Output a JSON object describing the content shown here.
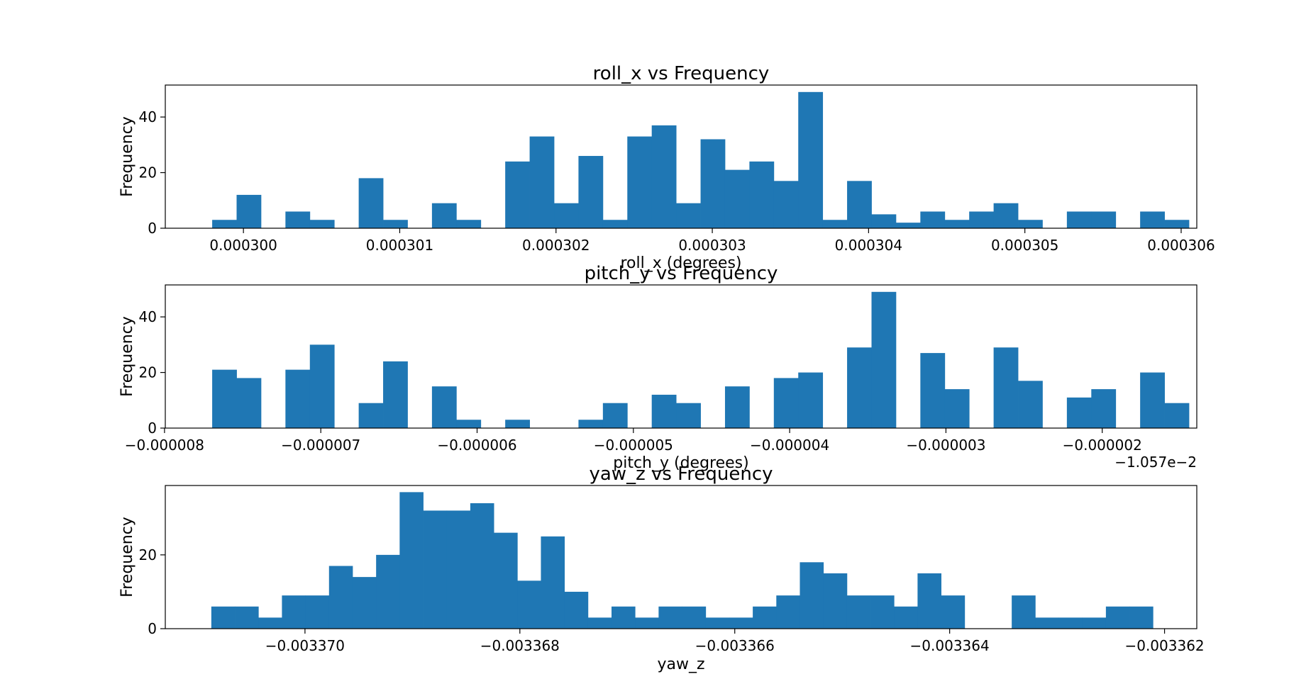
{
  "chart_data": [
    {
      "type": "bar",
      "title": "roll_x vs Frequency",
      "xlabel": "roll_x (degrees)",
      "ylabel": "Frequency",
      "offset_text": "",
      "color": "#1f77b4",
      "xlim": [
        0.0002995,
        0.0003061
      ],
      "ylim": [
        0,
        51.5
      ],
      "xticks": [
        0.0003,
        0.000301,
        0.000302,
        0.000303,
        0.000304,
        0.000305,
        0.000306
      ],
      "xtick_labels": [
        "0.000300",
        "0.000301",
        "0.000302",
        "0.000303",
        "0.000304",
        "0.000305",
        "0.000306"
      ],
      "yticks": [
        0,
        20,
        40
      ],
      "ytick_labels": [
        "0",
        "20",
        "40"
      ],
      "bin_start": 0.0002998,
      "bin_width": 1.5625e-07,
      "values": [
        3,
        12,
        0,
        6,
        3,
        0,
        18,
        3,
        0,
        9,
        3,
        0,
        24,
        33,
        9,
        26,
        3,
        33,
        37,
        9,
        32,
        21,
        24,
        17,
        49,
        3,
        17,
        5,
        2,
        6,
        3,
        6,
        9,
        3,
        0,
        6,
        6,
        0,
        6,
        3
      ]
    },
    {
      "type": "bar",
      "title": "pitch_y vs Frequency",
      "xlabel": "pitch_y (degrees)",
      "ylabel": "Frequency",
      "offset_text": "−1.057e−2",
      "color": "#1f77b4",
      "xlim": [
        -7.995e-06,
        -1.395e-06
      ],
      "ylim": [
        0,
        51.5
      ],
      "xticks": [
        -8e-06,
        -7e-06,
        -6e-06,
        -5e-06,
        -4e-06,
        -3e-06,
        -2e-06
      ],
      "xtick_labels": [
        "−0.000008",
        "−0.000007",
        "−0.000006",
        "−0.000005",
        "−0.000004",
        "−0.000003",
        "−0.000002"
      ],
      "yticks": [
        0,
        20,
        40
      ],
      "ytick_labels": [
        "0",
        "20",
        "40"
      ],
      "bin_start": -7.695e-06,
      "bin_width": 1.5625e-07,
      "values": [
        21,
        18,
        0,
        21,
        30,
        0,
        9,
        24,
        0,
        15,
        3,
        0,
        3,
        0,
        0,
        3,
        9,
        0,
        12,
        9,
        0,
        15,
        0,
        18,
        20,
        0,
        29,
        49,
        0,
        27,
        14,
        0,
        29,
        17,
        0,
        11,
        14,
        0,
        20,
        9
      ]
    },
    {
      "type": "bar",
      "title": "yaw_z vs Frequency",
      "xlabel": "yaw_z",
      "ylabel": "Frequency",
      "offset_text": "",
      "color": "#1f77b4",
      "xlim": [
        -0.0033713,
        -0.0033617
      ],
      "ylim": [
        0,
        38.8
      ],
      "xticks": [
        -0.00337,
        -0.003368,
        -0.003366,
        -0.003364,
        -0.003362
      ],
      "xtick_labels": [
        "−0.003370",
        "−0.003368",
        "−0.003366",
        "−0.003364",
        "−0.003362"
      ],
      "yticks": [
        0,
        20
      ],
      "ytick_labels": [
        "0",
        "20"
      ],
      "bin_start": -0.0033708717,
      "bin_width": 2.191e-07,
      "values": [
        6,
        6,
        3,
        9,
        9,
        17,
        14,
        20,
        37,
        32,
        32,
        34,
        26,
        13,
        25,
        10,
        3,
        6,
        3,
        6,
        6,
        3,
        3,
        6,
        9,
        18,
        15,
        9,
        9,
        6,
        15,
        9,
        0,
        0,
        9,
        3,
        3,
        3,
        6,
        6
      ]
    }
  ]
}
